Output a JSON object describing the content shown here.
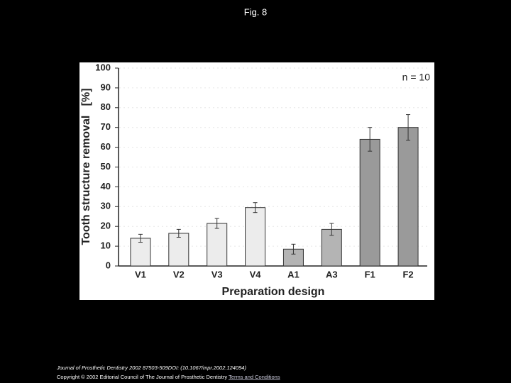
{
  "slide_title": "Fig. 8",
  "chart_data": {
    "type": "bar",
    "y_label": "Tooth structure removal   [%]",
    "x_label": "Preparation design",
    "annotation": "n = 10",
    "categories": [
      "V1",
      "V2",
      "V3",
      "V4",
      "A1",
      "A3",
      "F1",
      "F2"
    ],
    "values": [
      14,
      16.5,
      21.5,
      29.5,
      8.5,
      18.5,
      64,
      70
    ],
    "errors": [
      2,
      2,
      2.5,
      2.5,
      2.5,
      3,
      6,
      6.5
    ],
    "colors": [
      "#ececec",
      "#ececec",
      "#ececec",
      "#ececec",
      "#b4b4b4",
      "#b4b4b4",
      "#9a9a9a",
      "#9a9a9a"
    ],
    "ylim": [
      0,
      100
    ],
    "yticks": [
      0,
      10,
      20,
      30,
      40,
      50,
      60,
      70,
      80,
      90,
      100
    ],
    "grid": true
  },
  "footer": {
    "citation": "Journal of Prosthetic Dentistry 2002 87503-509DOI: (10.1067/mpr.2002.124094)",
    "copyright": "Copyright © 2002 Editorial Council of The Journal of Prosthetic Dentistry",
    "link": "Terms and Conditions"
  }
}
